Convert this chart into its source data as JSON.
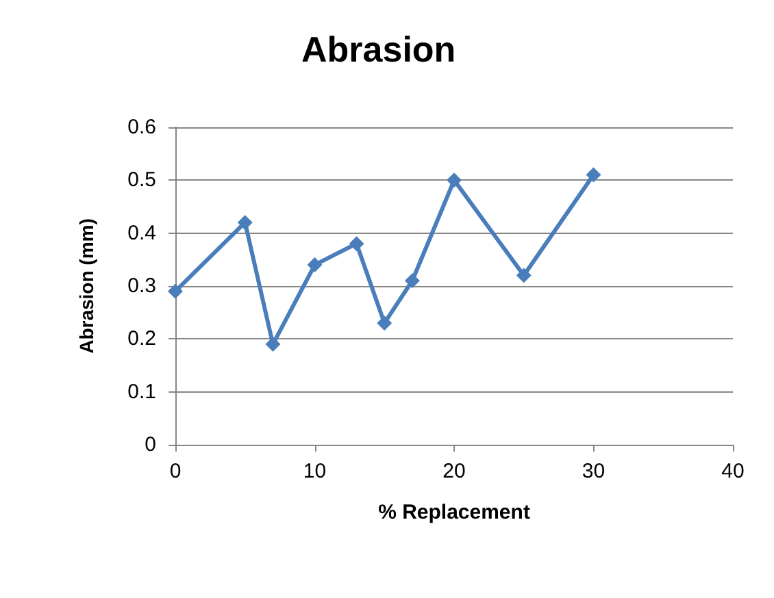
{
  "chart_data": {
    "type": "line",
    "title": "Abrasion",
    "xlabel": "% Replacement",
    "ylabel": "Abrasion (mm)",
    "x": [
      0,
      5,
      7,
      10,
      13,
      15,
      17,
      20,
      25,
      30
    ],
    "series": [
      {
        "color": "#4a7ebb",
        "values": [
          0.29,
          0.42,
          0.19,
          0.34,
          0.38,
          0.23,
          0.31,
          0.5,
          0.32,
          0.51
        ]
      }
    ],
    "xlim": [
      0,
      40
    ],
    "xticks": [
      0,
      10,
      20,
      30,
      40
    ],
    "ylim": [
      0,
      0.6
    ],
    "yticks": [
      0,
      0.1,
      0.2,
      0.3,
      0.4,
      0.5,
      0.6
    ],
    "grid": "y",
    "marker": "diamond",
    "line_style": "solid"
  }
}
